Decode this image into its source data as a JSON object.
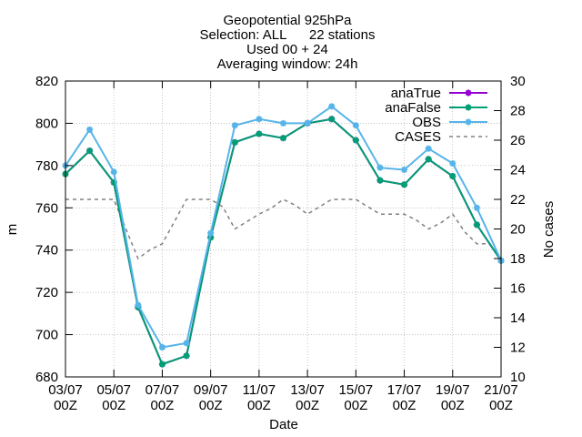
{
  "chart_data": {
    "type": "line",
    "title_lines": [
      "Geopotential 925hPa",
      "Selection: ALL      22 stations",
      "Used 00 + 24",
      "Averaging window: 24h"
    ],
    "xlabel": "Date",
    "ylabel": "m",
    "y2label": "No cases",
    "ylim": [
      680,
      820
    ],
    "yticks": [
      680,
      700,
      720,
      740,
      760,
      780,
      800,
      820
    ],
    "y2lim": [
      10,
      30
    ],
    "y2ticks": [
      10,
      12,
      14,
      16,
      18,
      20,
      22,
      24,
      26,
      28,
      30
    ],
    "x_tick_labels": [
      {
        "i": 0,
        "line1": "03/07",
        "line2": "00Z"
      },
      {
        "i": 2,
        "line1": "05/07",
        "line2": "00Z"
      },
      {
        "i": 4,
        "line1": "07/07",
        "line2": "00Z"
      },
      {
        "i": 6,
        "line1": "09/07",
        "line2": "00Z"
      },
      {
        "i": 8,
        "line1": "11/07",
        "line2": "00Z"
      },
      {
        "i": 10,
        "line1": "13/07",
        "line2": "00Z"
      },
      {
        "i": 12,
        "line1": "15/07",
        "line2": "00Z"
      },
      {
        "i": 14,
        "line1": "17/07",
        "line2": "00Z"
      },
      {
        "i": 16,
        "line1": "19/07",
        "line2": "00Z"
      },
      {
        "i": 18,
        "line1": "21/07",
        "line2": "00Z"
      }
    ],
    "x": [
      "03/07 00Z",
      "03/07 12Z",
      "04/07 00Z",
      "04/07 12Z",
      "05/07 00Z",
      "05/07 12Z",
      "06/07 00Z",
      "06/07 12Z",
      "07/07 00Z",
      "07/07 12Z",
      "08/07 00Z",
      "08/07 12Z",
      "09/07 00Z",
      "09/07 12Z",
      "10/07 00Z",
      "10/07 12Z",
      "11/07 00Z",
      "11/07 12Z",
      "12/07 00Z",
      "12/07 12Z",
      "13/07 00Z",
      "13/07 12Z",
      "14/07 00Z",
      "14/07 12Z",
      "15/07 00Z",
      "15/07 12Z",
      "16/07 00Z",
      "16/07 12Z",
      "17/07 00Z",
      "17/07 12Z",
      "18/07 00Z",
      "18/07 12Z",
      "19/07 00Z",
      "19/07 12Z",
      "20/07 00Z",
      "20/07 12Z",
      "21/07 00Z"
    ],
    "series": [
      {
        "name": "anaTrue",
        "axis": "y1",
        "color": "#9400d3",
        "marker": "cross",
        "values": [
          776,
          null,
          787,
          null,
          772,
          null,
          713,
          null,
          686,
          null,
          690,
          null,
          746,
          null,
          791,
          null,
          795,
          null,
          793,
          null,
          800,
          null,
          802,
          null,
          792,
          null,
          773,
          null,
          771,
          null,
          783,
          null,
          775,
          null,
          752,
          null,
          735
        ]
      },
      {
        "name": "anaFalse",
        "axis": "y1",
        "color": "#009e73",
        "marker": "cross",
        "values": [
          776,
          null,
          787,
          null,
          772,
          null,
          713,
          null,
          686,
          null,
          690,
          null,
          746,
          null,
          791,
          null,
          795,
          null,
          793,
          null,
          800,
          null,
          802,
          null,
          792,
          null,
          773,
          null,
          771,
          null,
          783,
          null,
          775,
          null,
          752,
          null,
          735
        ]
      },
      {
        "name": "OBS",
        "axis": "y1",
        "color": "#56b4e9",
        "marker": "cross",
        "values": [
          780,
          null,
          797,
          null,
          777,
          null,
          714,
          null,
          694,
          null,
          696,
          null,
          748,
          null,
          799,
          null,
          802,
          null,
          800,
          null,
          800,
          null,
          808,
          null,
          799,
          null,
          779,
          null,
          778,
          null,
          788,
          null,
          781,
          null,
          760,
          null,
          735
        ]
      },
      {
        "name": "CASES",
        "axis": "y2",
        "color": "#808080",
        "dashed": true,
        "values": [
          22,
          22,
          22,
          22,
          22,
          20,
          18,
          18.6,
          19,
          20.5,
          22,
          22,
          22,
          21.5,
          20,
          20.5,
          21,
          21.4,
          22,
          21.6,
          21,
          21.5,
          22,
          22,
          22,
          21.5,
          21,
          21,
          21,
          20.6,
          20,
          20.4,
          21,
          19.8,
          19,
          19,
          18
        ]
      }
    ],
    "legend_position": "top-right",
    "grid": true
  }
}
